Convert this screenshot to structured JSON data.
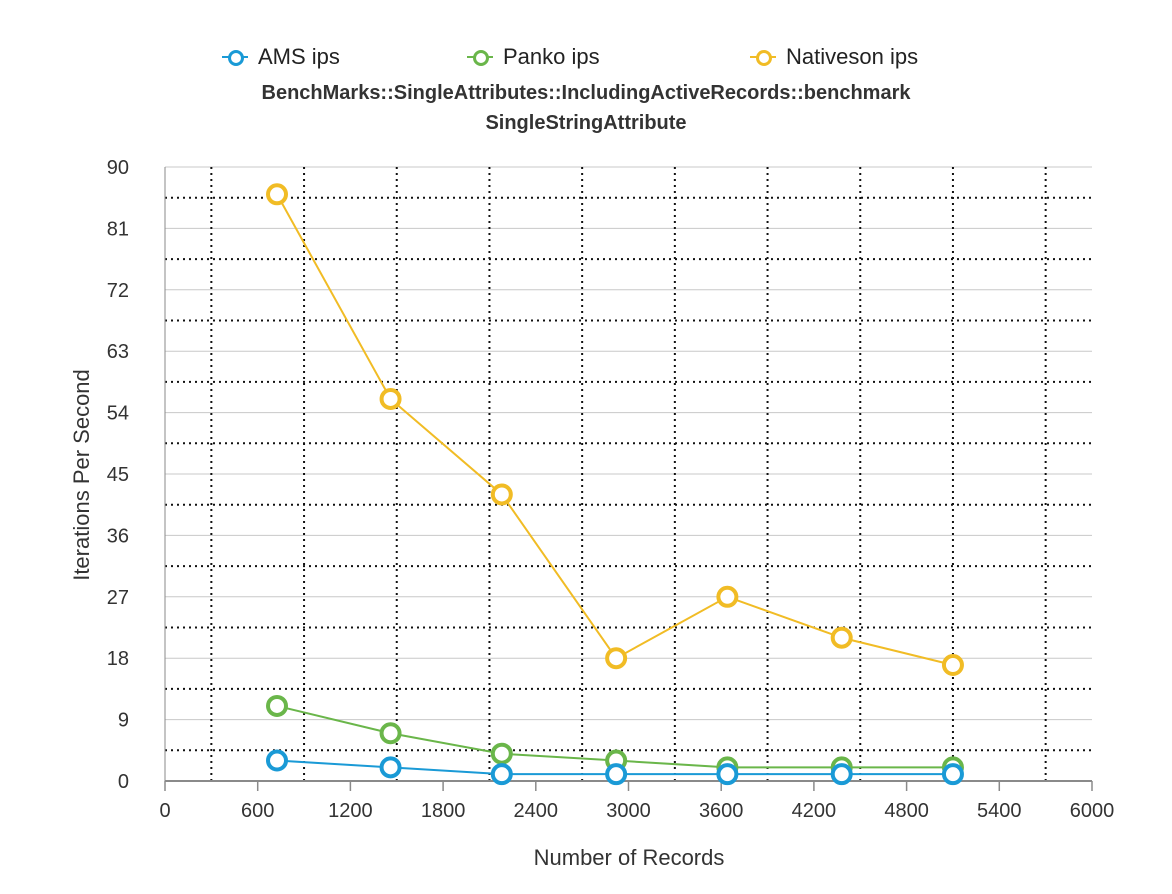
{
  "chart_data": {
    "type": "line",
    "title": "BenchMarks::SingleAttributes::IncludingActiveRecords::benchmark",
    "subtitle": "SingleStringAttribute",
    "xlabel": "Number of Records",
    "ylabel": "Iterations Per Second",
    "xlim": [
      0,
      6000
    ],
    "ylim": [
      0,
      90
    ],
    "xticks": [
      0,
      600,
      1200,
      1800,
      2400,
      3000,
      3600,
      4200,
      4800,
      5400,
      6000
    ],
    "yticks": [
      0,
      9,
      18,
      27,
      36,
      45,
      54,
      63,
      72,
      81,
      90
    ],
    "legend_position": "top",
    "grid": true,
    "x": [
      725,
      1460,
      2180,
      2920,
      3640,
      4380,
      5100
    ],
    "series": [
      {
        "name": "AMS ips",
        "color": "#1a9ad6",
        "values": [
          3,
          2,
          1,
          1,
          1,
          1,
          1
        ]
      },
      {
        "name": "Panko ips",
        "color": "#6ab64a",
        "values": [
          11,
          7,
          4,
          3,
          2,
          2,
          2
        ]
      },
      {
        "name": "Nativeson ips",
        "color": "#f1bc25",
        "values": [
          86,
          56,
          42,
          18,
          27,
          21,
          17
        ]
      }
    ]
  }
}
